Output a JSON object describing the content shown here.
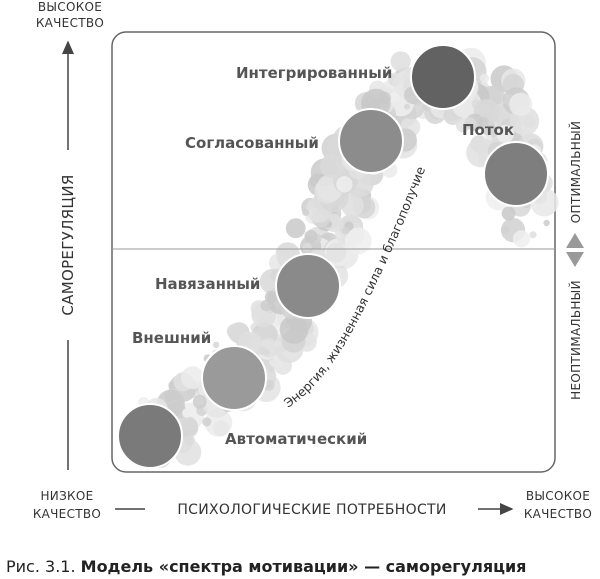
{
  "axes": {
    "top_left": [
      "ВЫСОКОЕ",
      "КАЧЕСТВО"
    ],
    "y_label": "САМОРЕГУЛЯЦИЯ",
    "bottom_left": [
      "НИЗКОЕ",
      "КАЧЕСТВО"
    ],
    "x_label": "ПСИХОЛОГИЧЕСКИЕ ПОТРЕБНОСТИ",
    "bottom_right": [
      "ВЫСОКОЕ",
      "КАЧЕСТВО"
    ],
    "right_top": "ОПТИМАЛЬНЫЙ",
    "right_bottom": "НЕОПТИМАЛЬНЫЙ"
  },
  "nodes": [
    {
      "label": "Автоматический"
    },
    {
      "label": "Внешний"
    },
    {
      "label": "Навязанный"
    },
    {
      "label": "Согласованный"
    },
    {
      "label": "Интегрированный"
    },
    {
      "label": "Поток"
    }
  ],
  "curve_label": "Энергия, жизненная сила и благополучие",
  "caption": {
    "number": "Рис. 3.1.",
    "text": "Модель «спектра мотивации» — саморегуляция"
  }
}
